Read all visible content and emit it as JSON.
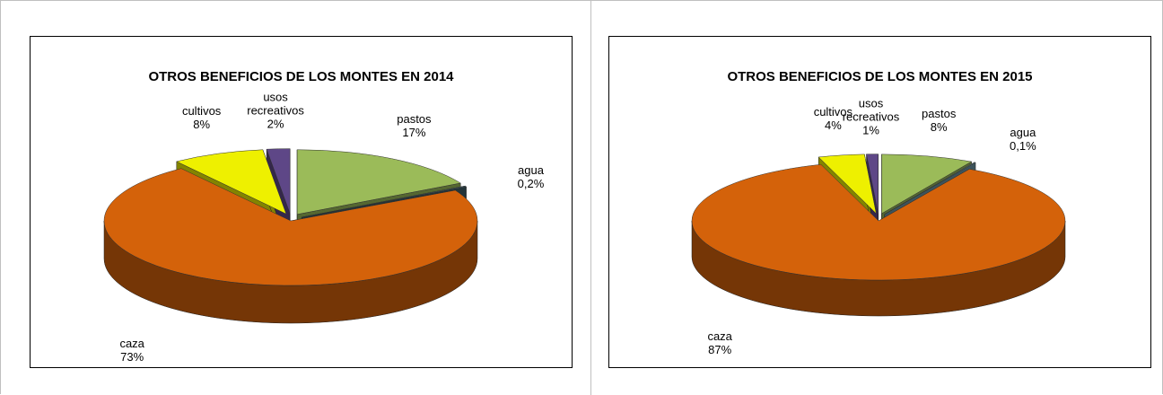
{
  "chart_data": [
    {
      "type": "pie",
      "title": "OTROS BENEFICIOS DE LOS MONTES EN 2014",
      "categories": [
        "pastos",
        "agua",
        "caza",
        "cultivos",
        "usos recreativos"
      ],
      "values": [
        17,
        0.2,
        73,
        8,
        2
      ],
      "value_labels": [
        "17%",
        "0,2%",
        "73%",
        "8%",
        "2%"
      ],
      "colors": [
        "#9bbb59",
        "#3f5f68",
        "#d4620a",
        "#eef000",
        "#5e4787"
      ]
    },
    {
      "type": "pie",
      "title": "OTROS BENEFICIOS DE LOS MONTES EN 2015",
      "categories": [
        "pastos",
        "agua",
        "caza",
        "cultivos",
        "usos recreativos"
      ],
      "values": [
        8,
        0.1,
        87,
        4,
        1
      ],
      "value_labels": [
        "8%",
        "0,1%",
        "87%",
        "4%",
        "1%"
      ],
      "colors": [
        "#9bbb59",
        "#6e98a6",
        "#d4620a",
        "#eef000",
        "#5e4787"
      ]
    }
  ]
}
